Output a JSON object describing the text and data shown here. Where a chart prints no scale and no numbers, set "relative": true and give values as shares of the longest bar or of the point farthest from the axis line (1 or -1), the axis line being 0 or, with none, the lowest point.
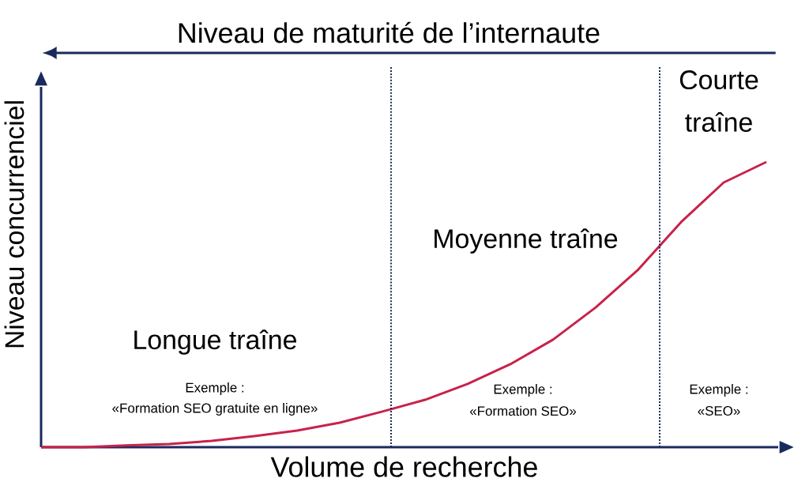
{
  "chart_data": {
    "type": "line",
    "relative": true,
    "categories": [
      null,
      null,
      null,
      null,
      null,
      null,
      null,
      null,
      null,
      null,
      null,
      null,
      null,
      null,
      null,
      null,
      null,
      null
    ],
    "series": [
      {
        "color": "#c8224a",
        "values": [
          0,
          0,
          0.006,
          0.011,
          0.022,
          0.039,
          0.058,
          0.086,
          0.125,
          0.166,
          0.222,
          0.291,
          0.377,
          0.49,
          0.623,
          0.789,
          0.928,
          1
        ]
      }
    ],
    "xlabel": "Volume de recherche",
    "ylabel": "Niveau concurrenciel",
    "x2label": "Niveau de maturité de l’internaute",
    "annotations": [
      "Longue traîne",
      "Exemple :",
      "«Formation SEO gratuite en ligne»",
      "Moyenne traîne",
      "Exemple :",
      "«Formation SEO»",
      "Courte traîne",
      "Exemple :",
      "«SEO»"
    ]
  }
}
